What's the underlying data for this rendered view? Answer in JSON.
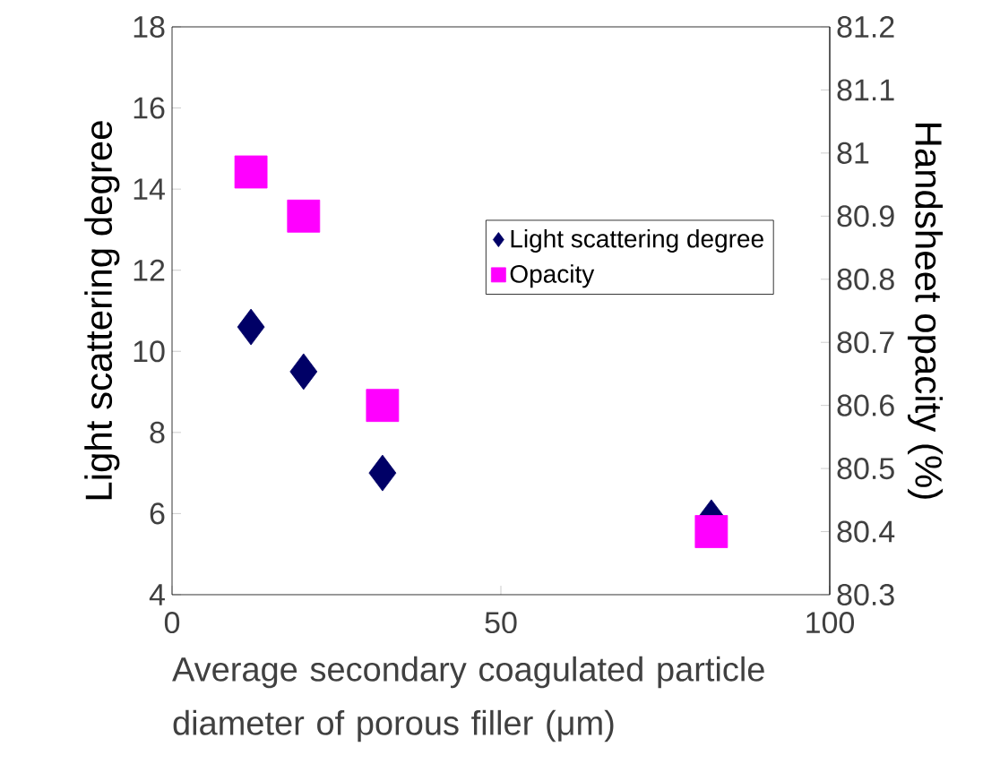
{
  "chart_data": {
    "type": "scatter",
    "xlabel": "Average secondary coagulated particle diameter of porous filler (μm)",
    "ylabel": "Light scattering degree",
    "y2label": "Handsheet opacity (%)",
    "xlim": [
      0,
      100
    ],
    "xticks": [
      0,
      50,
      100
    ],
    "ylim": [
      4,
      18
    ],
    "yticks": [
      4,
      6,
      8,
      10,
      12,
      14,
      16,
      18
    ],
    "y2lim": [
      80.3,
      81.2
    ],
    "y2ticks": [
      80.3,
      80.4,
      80.5,
      80.6,
      80.7,
      80.8,
      80.9,
      81,
      81.1,
      81.2
    ],
    "legend": "right",
    "series": [
      {
        "name": "Light scattering degree",
        "color": "#000066",
        "marker": "diamond",
        "x": [
          12,
          20,
          32,
          82
        ],
        "values": [
          10.6,
          9.5,
          7.0,
          5.9
        ]
      },
      {
        "name": "Opacity",
        "color": "#ff00ff",
        "marker": "square",
        "axis": "y2",
        "x": [
          12,
          20,
          32,
          82
        ],
        "values": [
          80.97,
          80.9,
          80.6,
          80.4
        ]
      }
    ]
  }
}
